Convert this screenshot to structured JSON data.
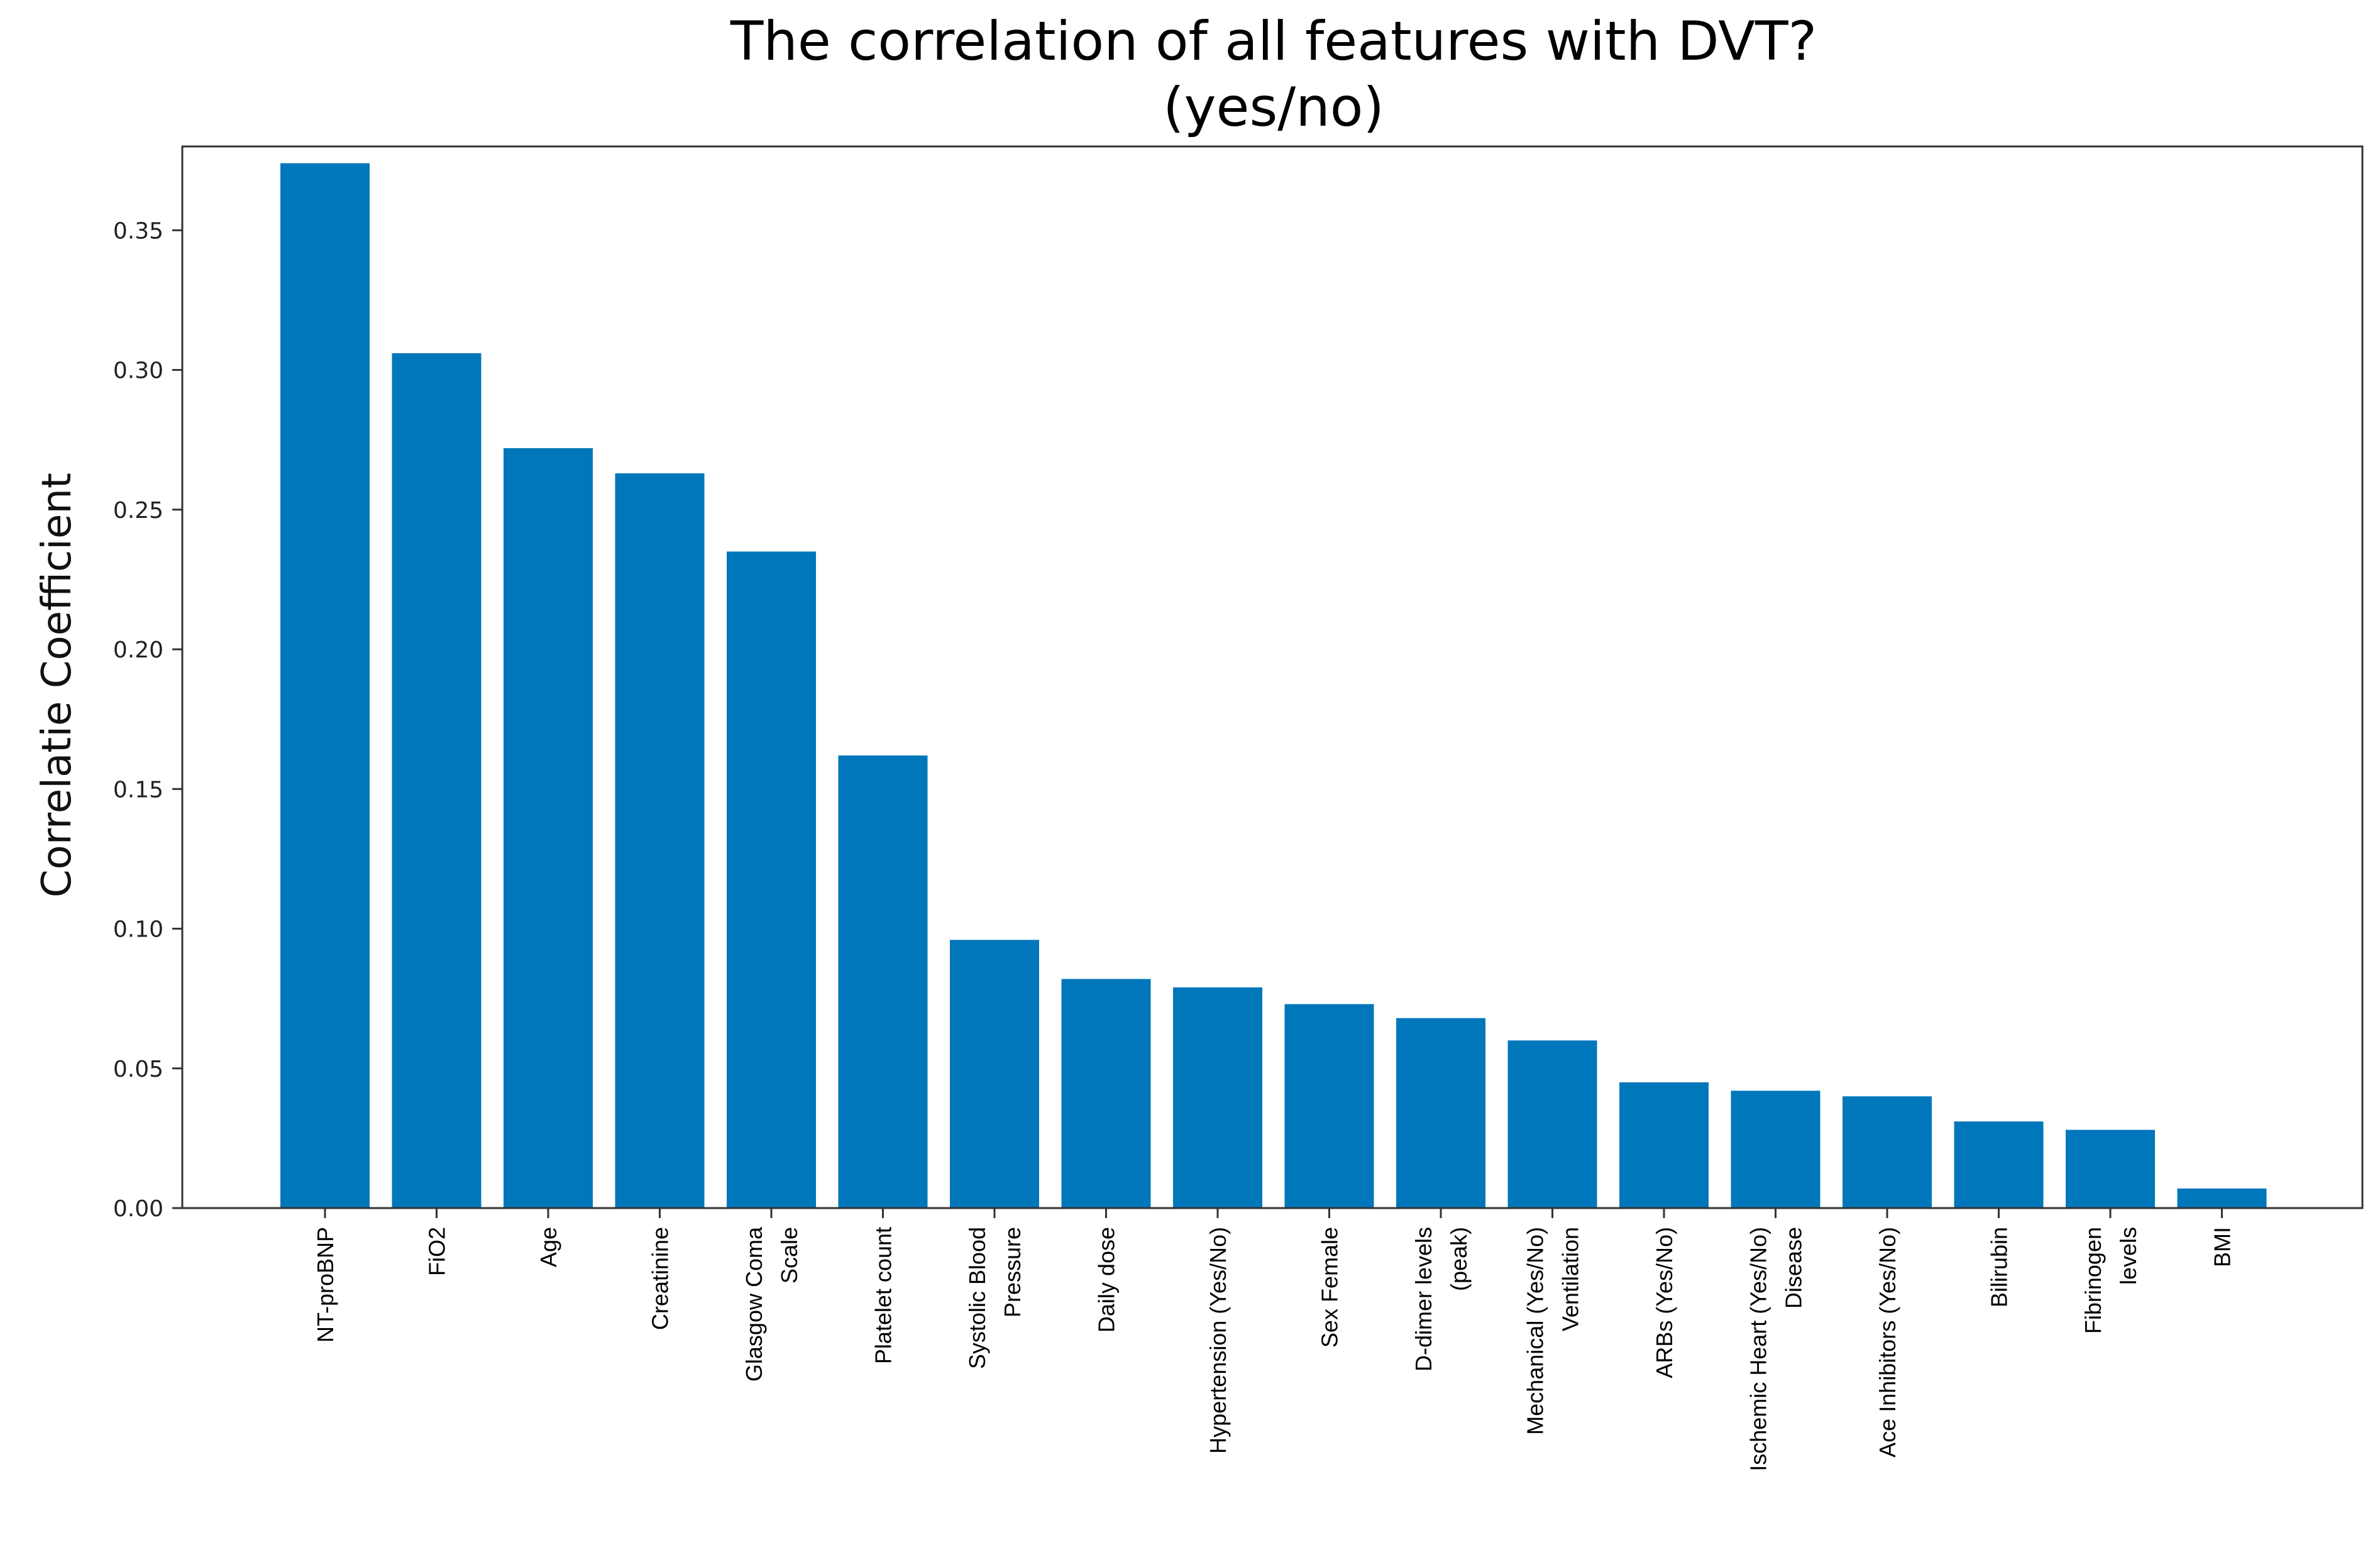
{
  "chart_data": {
    "type": "bar",
    "title": [
      "The correlation of all features with DVT?",
      "(yes/no)"
    ],
    "xlabel": "",
    "ylabel": "Correlatie Coefficient",
    "ylim": [
      0,
      0.38
    ],
    "yticks": [
      "0.00",
      "0.05",
      "0.10",
      "0.15",
      "0.20",
      "0.25",
      "0.30",
      "0.35"
    ],
    "ytick_values": [
      0,
      0.05,
      0.1,
      0.15,
      0.2,
      0.25,
      0.3,
      0.35
    ],
    "grid": false,
    "bar_color": "#0077BB",
    "categories": [
      [
        "NT-proBNP"
      ],
      [
        "FiO2"
      ],
      [
        "Age"
      ],
      [
        "Creatinine"
      ],
      [
        "Glasgow Coma",
        "Scale"
      ],
      [
        "Platelet count"
      ],
      [
        "Systolic Blood",
        "Pressure"
      ],
      [
        "Daily dose"
      ],
      [
        "Hypertension  (Yes/No)"
      ],
      [
        "Sex Female"
      ],
      [
        "D-dimer levels",
        "(peak)"
      ],
      [
        "Mechanical      (Yes/No)",
        "Ventilation"
      ],
      [
        "ARBs      (Yes/No)"
      ],
      [
        "Ischemic Heart      (Yes/No)",
        "Disease"
      ],
      [
        "Ace Inhibitors (Yes/No)"
      ],
      [
        "Bilirubin"
      ],
      [
        "Fibrinogen",
        "levels"
      ],
      [
        "BMI"
      ]
    ],
    "values": [
      0.374,
      0.306,
      0.272,
      0.263,
      0.235,
      0.162,
      0.096,
      0.082,
      0.079,
      0.073,
      0.068,
      0.06,
      0.045,
      0.042,
      0.04,
      0.031,
      0.028,
      0.007
    ]
  }
}
